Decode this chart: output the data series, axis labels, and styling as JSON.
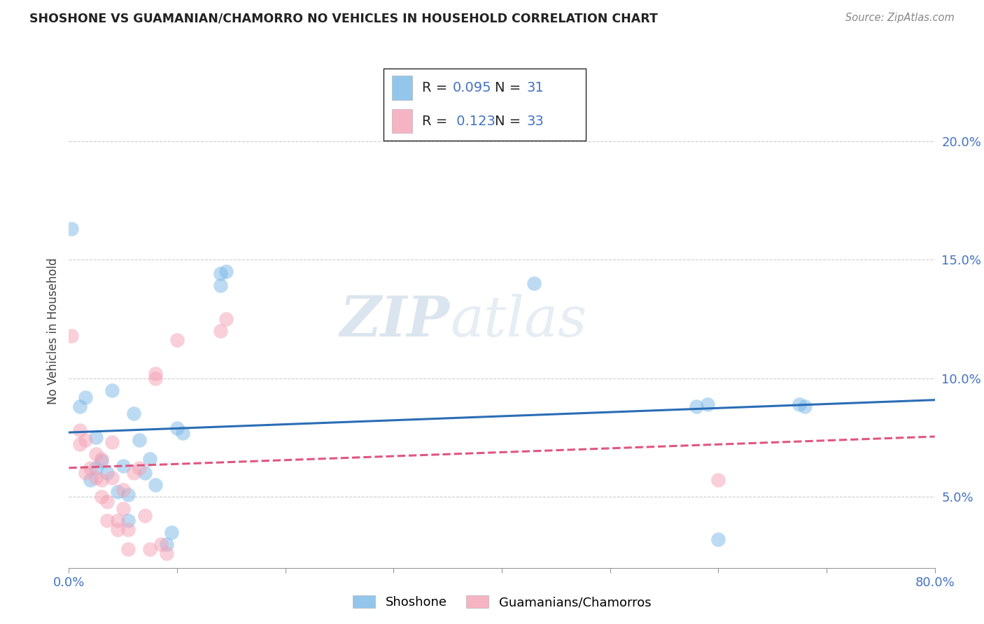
{
  "title": "SHOSHONE VS GUAMANIAN/CHAMORRO NO VEHICLES IN HOUSEHOLD CORRELATION CHART",
  "source": "Source: ZipAtlas.com",
  "ylabel": "No Vehicles in Household",
  "xlim": [
    0.0,
    0.8
  ],
  "ylim": [
    0.02,
    0.22
  ],
  "yticks": [
    0.05,
    0.1,
    0.15,
    0.2
  ],
  "yticklabels": [
    "5.0%",
    "10.0%",
    "15.0%",
    "20.0%"
  ],
  "R_shoshone": "0.095",
  "N_shoshone": "31",
  "R_guamanian": "0.123",
  "N_guamanian": "33",
  "color_shoshone": "#7ab8e8",
  "color_guamanian": "#f4a0b5",
  "color_line_shoshone": "#2a6db5",
  "color_line_guamanian": "#e05580",
  "legend_label_shoshone": "Shoshone",
  "legend_label_guamanian": "Guamanians/Chamorros",
  "watermark_zip": "ZIP",
  "watermark_atlas": "atlas",
  "shoshone_x": [
    0.002,
    0.01,
    0.015,
    0.02,
    0.025,
    0.025,
    0.03,
    0.035,
    0.04,
    0.045,
    0.05,
    0.055,
    0.055,
    0.06,
    0.065,
    0.07,
    0.075,
    0.08,
    0.09,
    0.095,
    0.1,
    0.105,
    0.14,
    0.14,
    0.145,
    0.43,
    0.58,
    0.59,
    0.6,
    0.675,
    0.68
  ],
  "shoshone_y": [
    0.163,
    0.088,
    0.092,
    0.057,
    0.062,
    0.075,
    0.065,
    0.06,
    0.095,
    0.052,
    0.063,
    0.051,
    0.04,
    0.085,
    0.074,
    0.06,
    0.066,
    0.055,
    0.03,
    0.035,
    0.079,
    0.077,
    0.139,
    0.144,
    0.145,
    0.14,
    0.088,
    0.089,
    0.032,
    0.089,
    0.088
  ],
  "guamanian_x": [
    0.002,
    0.01,
    0.01,
    0.015,
    0.015,
    0.02,
    0.025,
    0.025,
    0.03,
    0.03,
    0.03,
    0.035,
    0.035,
    0.04,
    0.04,
    0.045,
    0.045,
    0.05,
    0.05,
    0.055,
    0.055,
    0.06,
    0.065,
    0.07,
    0.075,
    0.08,
    0.08,
    0.085,
    0.09,
    0.1,
    0.14,
    0.145,
    0.6
  ],
  "guamanian_y": [
    0.118,
    0.072,
    0.078,
    0.074,
    0.06,
    0.062,
    0.068,
    0.058,
    0.057,
    0.05,
    0.066,
    0.048,
    0.04,
    0.073,
    0.058,
    0.04,
    0.036,
    0.053,
    0.045,
    0.036,
    0.028,
    0.06,
    0.062,
    0.042,
    0.028,
    0.1,
    0.102,
    0.03,
    0.026,
    0.116,
    0.12,
    0.125,
    0.057
  ],
  "grid_color": "#cccccc",
  "tick_color": "#4472c4",
  "title_color": "#222222",
  "source_color": "#888888"
}
